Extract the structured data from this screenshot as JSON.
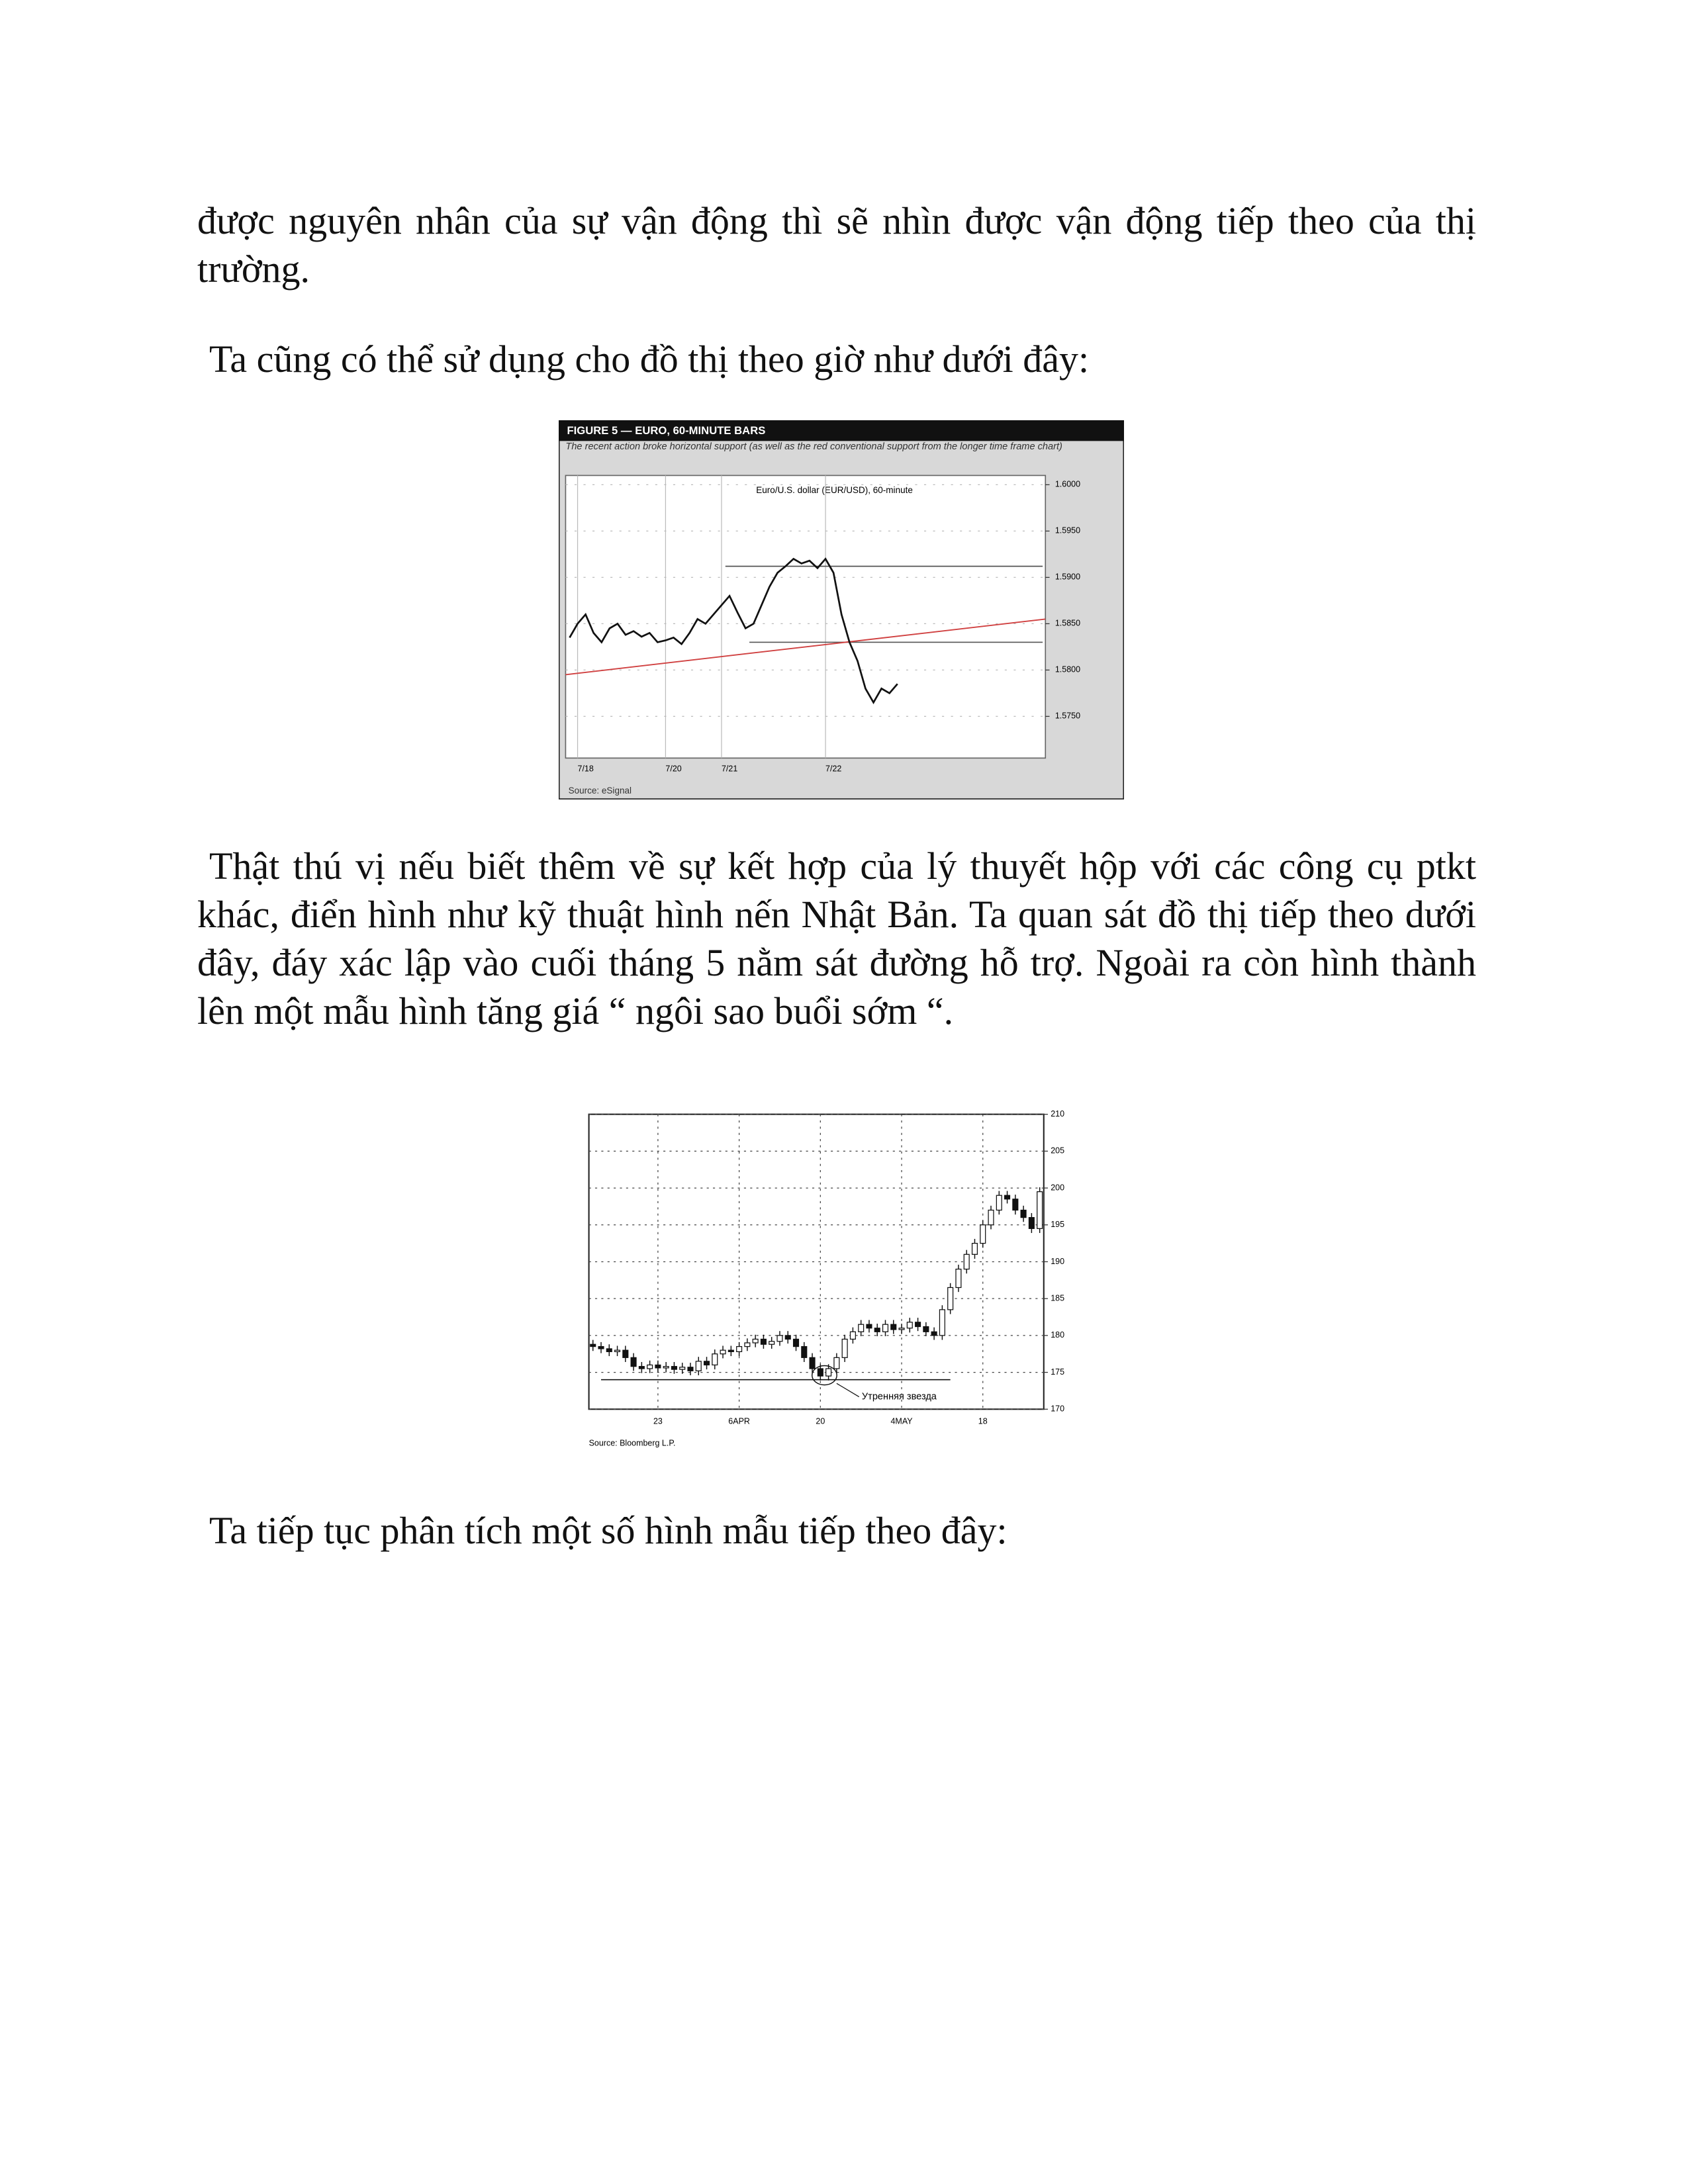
{
  "text": {
    "paragraphs": [
      "được nguyên nhân của sự vận động thì sẽ nhìn được vận động tiếp theo của thị trường.",
      "Ta cũng có thể sử dụng cho đồ thị theo giờ như dưới đây:",
      "Thật thú vị nếu biết thêm về sự kết hợp của lý thuyết hộp với các công cụ ptkt khác, điển hình như kỹ thuật hình nến Nhật Bản. Ta quan sát đồ thị tiếp theo dưới đây, đáy xác lập vào cuối tháng 5 nằm sát đường hỗ trợ. Ngoài ra còn hình thành lên một mẫu hình tăng giá “ ngôi sao buổi sớm “.",
      "Ta tiếp tục phân tích một số hình mẫu tiếp theo đây:"
    ]
  },
  "chart_data": [
    {
      "type": "line",
      "title": "FIGURE 5 — EURO, 60-MINUTE BARS",
      "subtitle": "The recent action broke horizontal support (as well as the red conventional support from the longer time frame chart)",
      "inner_title": "Euro/U.S. dollar (EUR/USD), 60-minute",
      "source": "Source: eSignal",
      "categories": [
        null,
        "7/18",
        null,
        null,
        null,
        null,
        null,
        null,
        null,
        null,
        null,
        null,
        "7/20",
        null,
        null,
        null,
        null,
        null,
        null,
        "7/21",
        null,
        null,
        null,
        null,
        null,
        null,
        null,
        null,
        null,
        null,
        null,
        null,
        "7/22",
        null,
        null,
        null,
        null,
        null,
        null,
        null,
        null,
        null,
        null,
        null,
        null,
        null,
        null,
        null,
        null,
        null,
        null,
        null,
        null,
        null,
        null,
        null,
        null,
        null,
        null,
        null
      ],
      "series": [
        {
          "name": "EUR/USD",
          "color": "#111111",
          "values": [
            1.5835,
            1.585,
            1.586,
            1.584,
            1.583,
            1.5845,
            1.585,
            1.5838,
            1.5842,
            1.5836,
            1.584,
            1.583,
            1.5832,
            1.5835,
            1.5828,
            1.584,
            1.5855,
            1.585,
            1.586,
            1.587,
            1.588,
            1.5862,
            1.5845,
            1.585,
            1.587,
            1.589,
            1.5905,
            1.5912,
            1.592,
            1.5915,
            1.5918,
            1.591,
            1.592,
            1.5905,
            1.586,
            1.583,
            1.581,
            1.578,
            1.5765,
            1.578,
            1.5775,
            1.5785,
            null,
            null,
            null,
            null,
            null,
            null,
            null,
            null,
            null,
            null,
            null,
            null,
            null,
            null,
            null,
            null,
            null,
            null
          ]
        }
      ],
      "levels": [
        1.5912,
        1.583
      ],
      "trendline": {
        "color": "#d04040",
        "from": 1.5795,
        "to": 1.5855
      },
      "ylim": [
        1.5705,
        1.601
      ],
      "yticks": [
        {
          "value": 1.6,
          "label": "1.6000"
        },
        {
          "value": 1.595,
          "label": "1.5950"
        },
        {
          "value": 1.59,
          "label": "1.5900"
        },
        {
          "value": 1.585,
          "label": "1.5850"
        },
        {
          "value": 1.58,
          "label": "1.5800"
        },
        {
          "value": 1.575,
          "label": "1.5750"
        }
      ],
      "grid": true
    },
    {
      "type": "candlestick",
      "source": "Source: Bloomberg L.P.",
      "annotation": "Утренняя звезда",
      "categories": [
        null,
        null,
        null,
        null,
        null,
        null,
        null,
        null,
        "23",
        null,
        null,
        null,
        null,
        null,
        null,
        null,
        null,
        null,
        "6APR",
        null,
        null,
        null,
        null,
        null,
        null,
        null,
        null,
        null,
        "20",
        null,
        null,
        null,
        null,
        null,
        null,
        null,
        null,
        null,
        "4MAY",
        null,
        null,
        null,
        null,
        null,
        null,
        null,
        null,
        null,
        "18",
        null,
        null,
        null,
        null,
        null,
        null,
        null
      ],
      "open": [
        178.8,
        178.5,
        178.2,
        177.8,
        178.0,
        177.0,
        175.8,
        175.5,
        176.0,
        175.6,
        175.8,
        175.4,
        175.7,
        175.2,
        176.5,
        176.0,
        177.5,
        178.0,
        177.8,
        178.5,
        179.0,
        179.5,
        178.8,
        179.2,
        180.0,
        179.5,
        178.5,
        177.0,
        175.5,
        174.5,
        175.5,
        177.0,
        179.5,
        180.5,
        181.5,
        181.0,
        180.5,
        181.5,
        180.8,
        181.0,
        181.8,
        181.2,
        180.5,
        180.0,
        183.5,
        186.5,
        189.0,
        191.0,
        192.5,
        195.0,
        197.0,
        199.0,
        198.5,
        197.0,
        196.0,
        194.5
      ],
      "high": [
        179.4,
        179.1,
        178.8,
        178.6,
        178.6,
        177.6,
        176.4,
        176.6,
        176.6,
        176.4,
        176.4,
        176.3,
        176.3,
        177.1,
        177.1,
        178.1,
        178.6,
        178.6,
        179.1,
        179.6,
        180.1,
        180.1,
        179.8,
        180.6,
        180.6,
        180.1,
        179.1,
        177.6,
        176.1,
        176.1,
        177.6,
        180.1,
        181.1,
        182.1,
        182.1,
        181.6,
        182.1,
        182.1,
        181.6,
        182.4,
        182.4,
        181.8,
        181.1,
        184.1,
        187.1,
        189.6,
        191.6,
        193.1,
        195.6,
        197.6,
        199.6,
        199.6,
        199.1,
        197.6,
        196.6,
        200.1
      ],
      "low": [
        177.9,
        177.6,
        177.2,
        177.2,
        176.4,
        175.2,
        174.9,
        174.9,
        175.0,
        175.0,
        174.8,
        174.8,
        174.6,
        174.6,
        175.4,
        175.4,
        176.9,
        177.2,
        177.2,
        177.9,
        178.4,
        178.2,
        178.2,
        178.6,
        178.9,
        177.9,
        176.4,
        174.9,
        173.9,
        173.9,
        174.9,
        176.4,
        178.9,
        179.9,
        180.4,
        179.9,
        179.9,
        180.2,
        180.2,
        180.4,
        180.6,
        179.9,
        179.4,
        179.4,
        182.9,
        185.9,
        188.4,
        190.4,
        191.9,
        194.4,
        196.4,
        197.9,
        196.4,
        195.4,
        193.9,
        193.9
      ],
      "close": [
        178.5,
        178.2,
        177.8,
        178.0,
        177.0,
        175.8,
        175.5,
        176.0,
        175.6,
        175.8,
        175.4,
        175.7,
        175.2,
        176.5,
        176.0,
        177.5,
        178.0,
        177.8,
        178.5,
        179.0,
        179.5,
        178.8,
        179.2,
        180.0,
        179.5,
        178.5,
        177.0,
        175.5,
        174.5,
        175.5,
        177.0,
        179.5,
        180.5,
        181.5,
        181.0,
        180.5,
        181.5,
        180.8,
        181.0,
        181.8,
        181.2,
        180.5,
        180.0,
        183.5,
        186.5,
        189.0,
        191.0,
        192.5,
        195.0,
        197.0,
        199.0,
        198.5,
        197.0,
        196.0,
        194.5,
        199.5
      ],
      "support": 174.0,
      "ylim": [
        170,
        210
      ],
      "yticks": [
        170,
        175,
        180,
        185,
        190,
        195,
        200,
        205,
        210
      ],
      "grid": true
    }
  ]
}
